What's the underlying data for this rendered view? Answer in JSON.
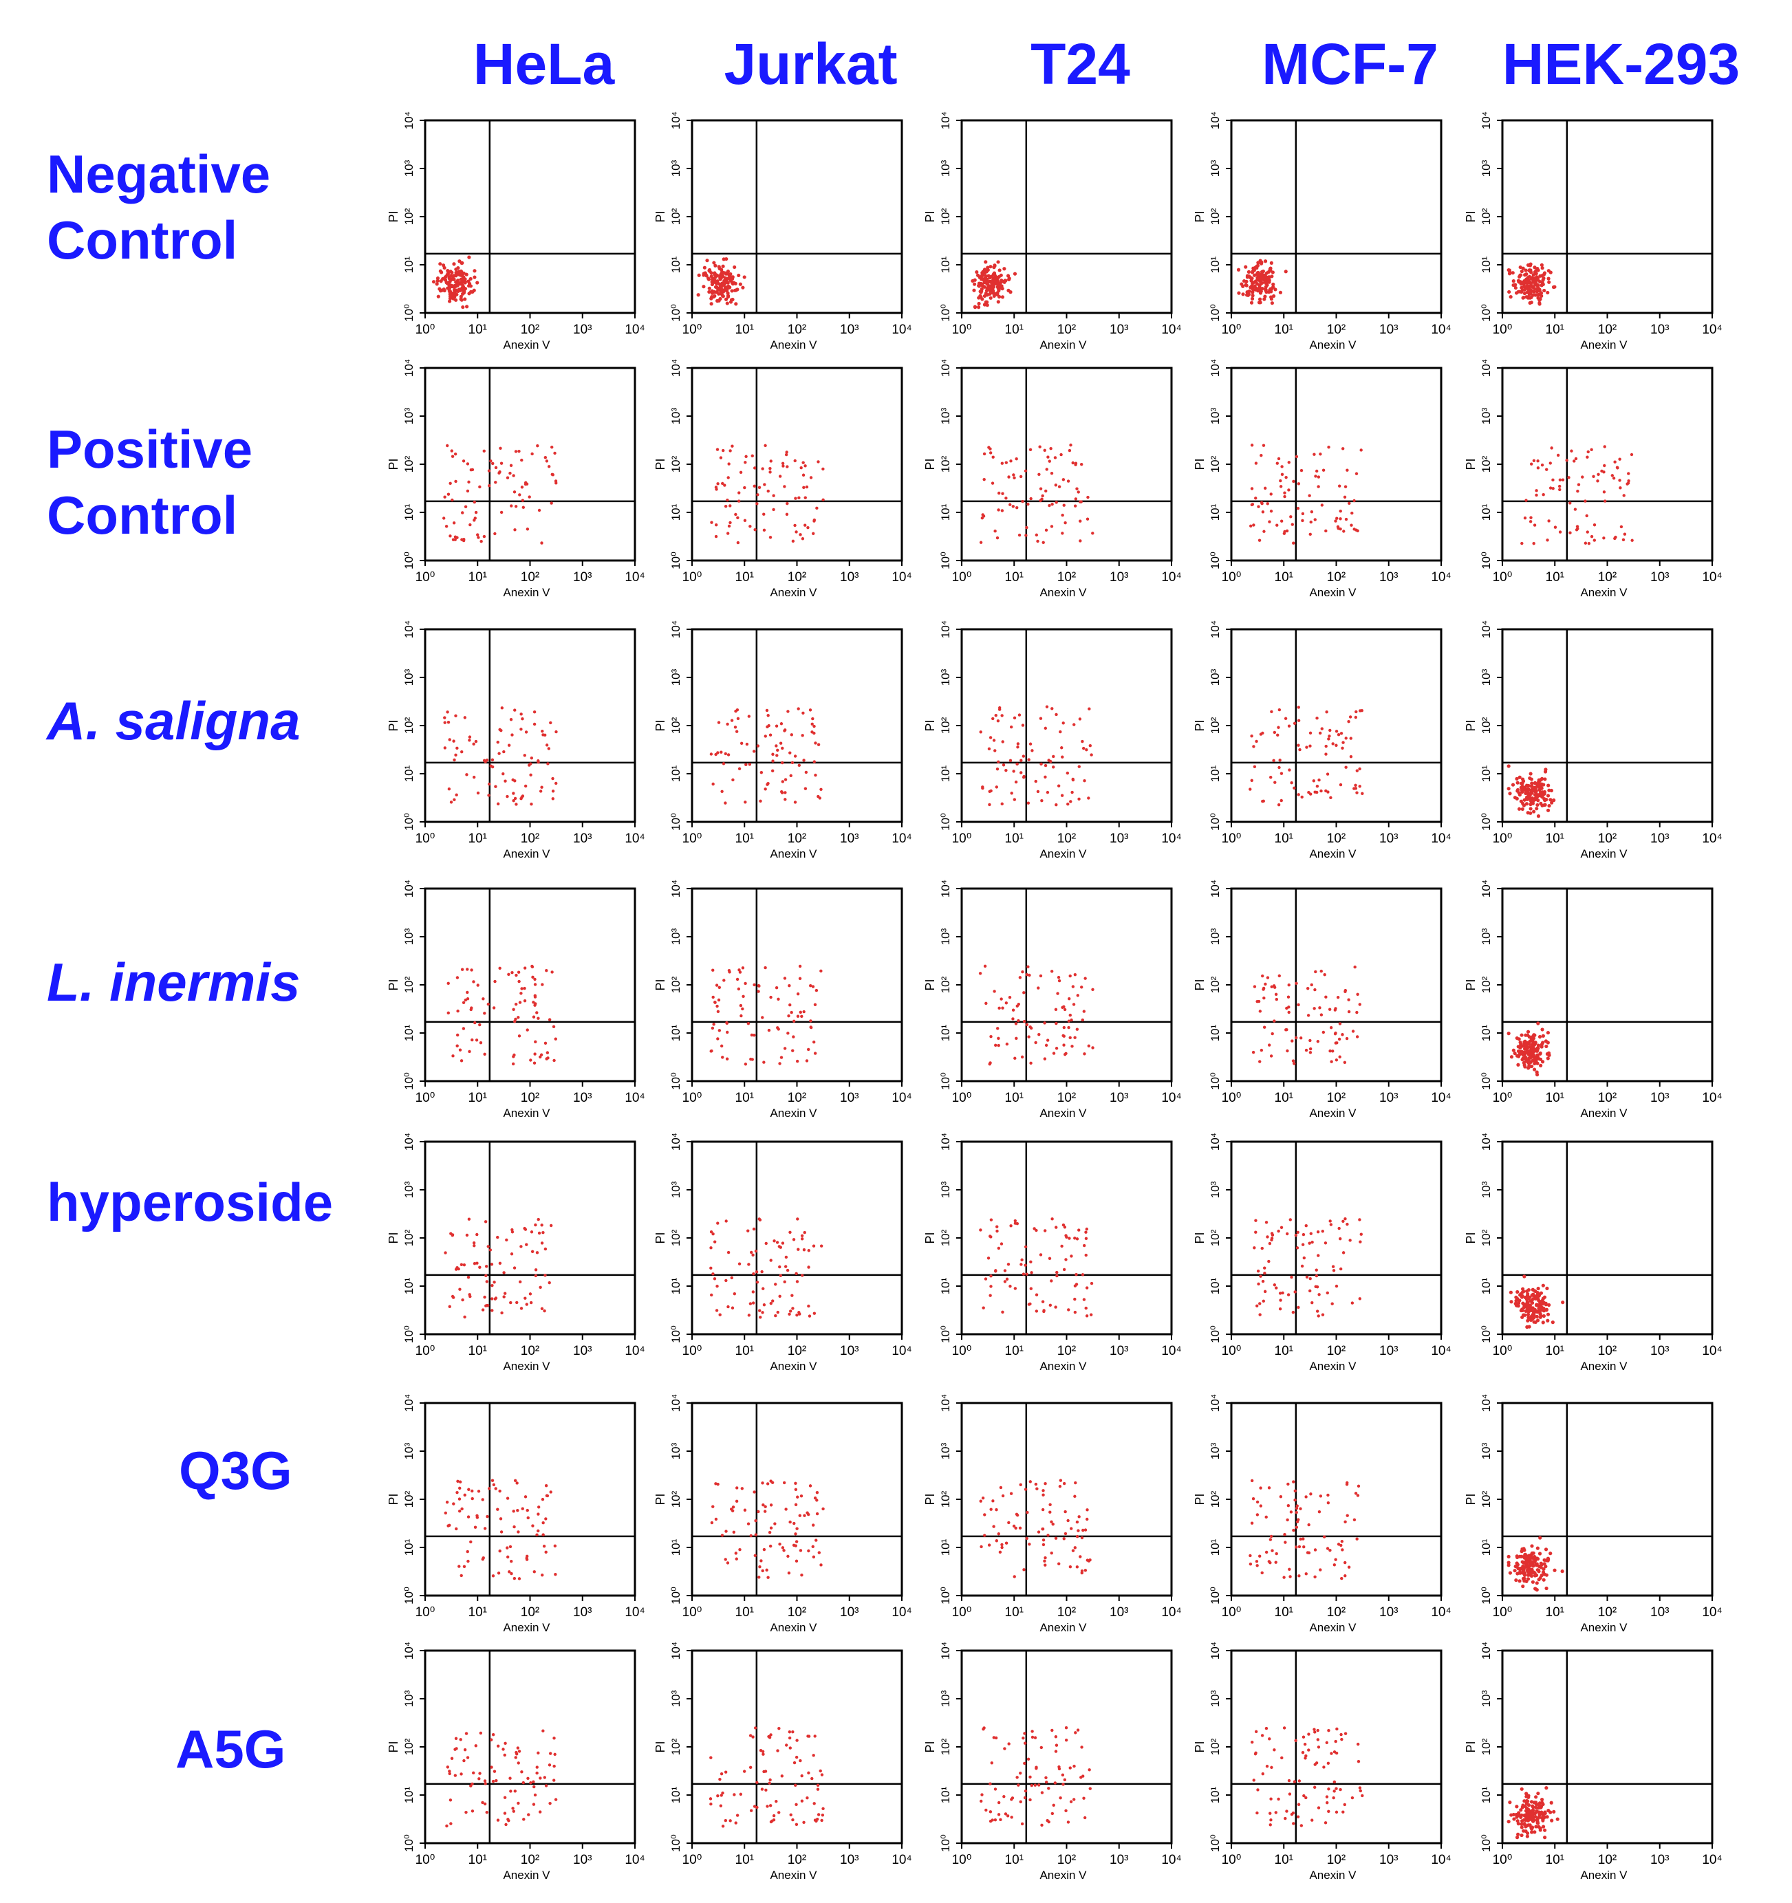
{
  "columns": [
    "HeLa",
    "Jurkat",
    "T24",
    "MCF-7",
    "HEK-293"
  ],
  "rows": [
    {
      "label_lines": [
        "Negative",
        "Control"
      ],
      "italic": false,
      "pattern": [
        "tight",
        "tight",
        "tight",
        "tight",
        "tight"
      ]
    },
    {
      "label_lines": [
        "Positive",
        "Control"
      ],
      "italic": false,
      "pattern": [
        "spread",
        "spread",
        "spread",
        "spread",
        "spread"
      ]
    },
    {
      "label_lines": [
        "A. saligna"
      ],
      "italic": true,
      "pattern": [
        "spread",
        "spread",
        "spread",
        "spread",
        "tight"
      ]
    },
    {
      "label_lines": [
        "L. inermis"
      ],
      "italic": true,
      "pattern": [
        "spread",
        "spread",
        "spread",
        "spread",
        "tight"
      ]
    },
    {
      "label_lines": [
        "hyperoside"
      ],
      "italic": false,
      "pattern": [
        "spread",
        "spread",
        "spread",
        "spread",
        "tight"
      ]
    },
    {
      "label_lines": [
        "Q3G"
      ],
      "italic": false,
      "pattern": [
        "spread",
        "spread",
        "spread",
        "spread",
        "tight"
      ]
    },
    {
      "label_lines": [
        "A5G"
      ],
      "italic": false,
      "pattern": [
        "spread",
        "spread",
        "spread",
        "spread",
        "tight"
      ]
    }
  ],
  "chart_data": {
    "type": "scatter",
    "xlabel": "Anexin V",
    "ylabel": "PI",
    "x_scale": "log",
    "y_scale": "log",
    "xlim": [
      1,
      10000
    ],
    "ylim": [
      1,
      10000
    ],
    "x_tick_labels": [
      "10⁰",
      "10¹",
      "10²",
      "10³",
      "10⁴"
    ],
    "y_tick_labels": [
      "10⁰",
      "10¹",
      "10²",
      "10³",
      "10⁴"
    ],
    "quadrant_gate": {
      "x": 17,
      "y": 17
    },
    "point_color": "#e03030",
    "line_color": "#000000"
  }
}
